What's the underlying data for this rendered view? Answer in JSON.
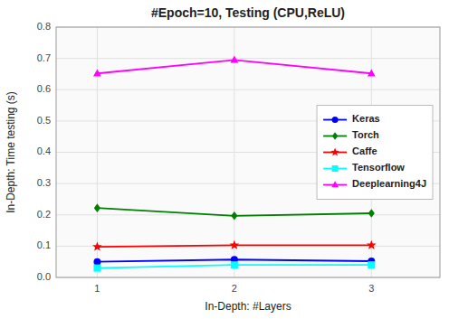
{
  "chart_data": {
    "type": "line",
    "title": "#Epoch=10, Testing (CPU,ReLU)",
    "xlabel": "In-Depth: #Layers",
    "ylabel": "In-Depth: Time testing (s)",
    "x": [
      1,
      2,
      3
    ],
    "xlim": [
      0.7,
      3.5
    ],
    "xticks": [
      1,
      2,
      3
    ],
    "ylim": [
      0.0,
      0.8
    ],
    "yticks": [
      {
        "value": 0.0,
        "label": "0.0"
      },
      0.1,
      0.2,
      0.3,
      0.4,
      0.5,
      0.6,
      0.7,
      0.8
    ],
    "grid": true,
    "legend": "right",
    "series": [
      {
        "name": "Keras",
        "color": "blue",
        "marker": "circle",
        "values": [
          0.05,
          0.057,
          0.052
        ]
      },
      {
        "name": "Torch",
        "color": "green",
        "marker": "diamond",
        "values": [
          0.222,
          0.197,
          0.205
        ]
      },
      {
        "name": "Caffe",
        "color": "red",
        "marker": "star",
        "values": [
          0.098,
          0.103,
          0.103
        ]
      },
      {
        "name": "Tensorflow",
        "color": "cyan",
        "marker": "square",
        "values": [
          0.03,
          0.04,
          0.04
        ]
      },
      {
        "name": "Deeplearning4J",
        "color": "magenta",
        "marker": "triangle",
        "values": [
          0.652,
          0.695,
          0.652
        ]
      }
    ]
  }
}
